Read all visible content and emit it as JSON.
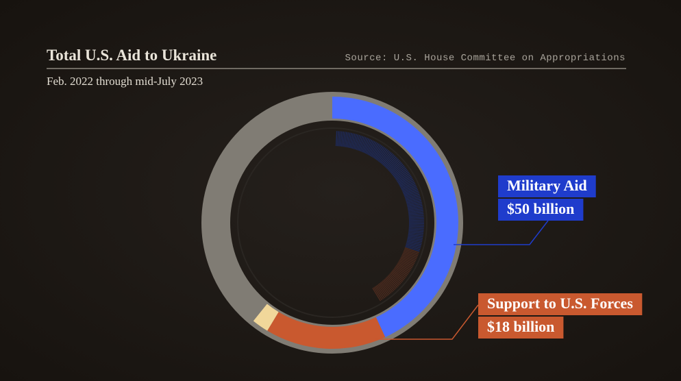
{
  "chart_data": {
    "type": "pie",
    "donut": true,
    "title": "Total U.S. Aid to Ukraine",
    "subtitle": "Feb. 2022 through mid-July 2023",
    "source": "Source: U.S. House Committee on Appropriations",
    "categories": [
      "Military Aid",
      "Support to U.S. Forces",
      null,
      null
    ],
    "values": [
      50,
      18,
      2.5,
      45.5
    ],
    "value_labels": [
      "$50 billion",
      "$18 billion",
      null,
      null
    ],
    "colors": [
      "#4a6cff",
      "#c9592f",
      "#f1d79a",
      "#807c74"
    ],
    "label_colors": [
      "#1f3ccc",
      "#c9592f"
    ]
  }
}
